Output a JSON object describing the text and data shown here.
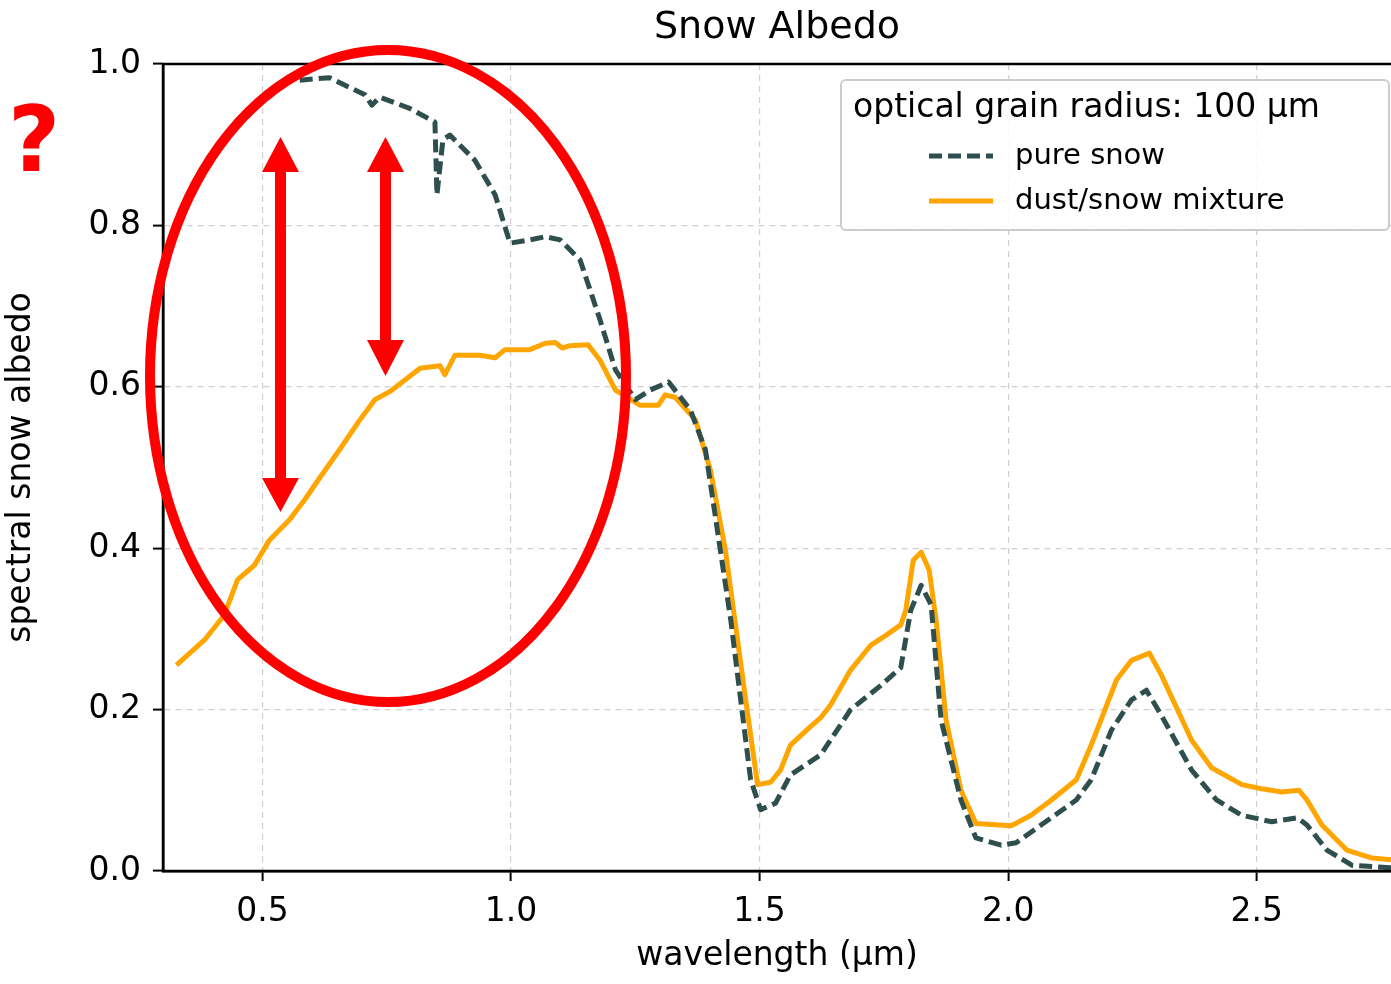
{
  "chart_data": {
    "type": "line",
    "title": "Snow Albedo",
    "xlabel": "wavelength (µm)",
    "ylabel": "spectral snow albedo",
    "legend_title": "optical grain radius: 100 µm",
    "legend": "top right",
    "grid": true,
    "marker": "none",
    "xlim": [
      0.3,
      2.77
    ],
    "xticks": [
      0.5,
      {
        "value": 1,
        "label": "1.0"
      },
      1.5,
      {
        "value": 2,
        "label": "2.0"
      },
      2.5
    ],
    "ylim": [
      0,
      1
    ],
    "yticks": [
      {
        "value": 0,
        "label": "0.0"
      },
      0.2,
      0.4,
      0.6,
      0.8,
      {
        "value": 1,
        "label": "1.0"
      }
    ],
    "annotations": [
      "?"
    ],
    "series": [
      {
        "name": "pure snow",
        "color": "#2f4f4f",
        "line_style": "dashed",
        "x": [
          0.575,
          0.635,
          0.665,
          0.706,
          0.72,
          0.736,
          0.796,
          0.847,
          0.851,
          0.863,
          0.877,
          0.927,
          0.968,
          0.998,
          1.038,
          1.069,
          1.099,
          1.139,
          1.179,
          1.21,
          1.25,
          1.28,
          1.317,
          1.361,
          1.391,
          1.442,
          1.482,
          1.502,
          1.532,
          1.562,
          1.623,
          1.683,
          1.744,
          1.784,
          1.804,
          1.825,
          1.845,
          1.865,
          1.905,
          1.935,
          1.986,
          2.016,
          2.066,
          2.137,
          2.167,
          2.208,
          2.248,
          2.278,
          2.308,
          2.369,
          2.419,
          2.47,
          2.53,
          2.581,
          2.601,
          2.641,
          2.692,
          2.77
        ],
        "values": [
          0.98,
          0.983,
          0.974,
          0.962,
          0.949,
          0.959,
          0.945,
          0.928,
          0.838,
          0.906,
          0.912,
          0.881,
          0.838,
          0.778,
          0.782,
          0.786,
          0.782,
          0.757,
          0.683,
          0.621,
          0.584,
          0.596,
          0.606,
          0.571,
          0.522,
          0.311,
          0.113,
          0.076,
          0.084,
          0.119,
          0.144,
          0.2,
          0.23,
          0.252,
          0.323,
          0.354,
          0.33,
          0.187,
          0.088,
          0.041,
          0.032,
          0.035,
          0.057,
          0.088,
          0.113,
          0.175,
          0.212,
          0.224,
          0.193,
          0.125,
          0.088,
          0.069,
          0.061,
          0.066,
          0.057,
          0.026,
          0.007,
          0.004
        ]
      },
      {
        "name": "dust/snow mixture",
        "color": "#ffa500",
        "line_style": "solid",
        "x": [
          0.327,
          0.383,
          0.423,
          0.45,
          0.484,
          0.514,
          0.554,
          0.585,
          0.615,
          0.655,
          0.696,
          0.726,
          0.756,
          0.786,
          0.817,
          0.857,
          0.867,
          0.887,
          0.938,
          0.968,
          0.988,
          1.038,
          1.069,
          1.089,
          1.103,
          1.119,
          1.155,
          1.179,
          1.21,
          1.26,
          1.296,
          1.31,
          1.33,
          1.371,
          1.401,
          1.431,
          1.472,
          1.496,
          1.522,
          1.542,
          1.562,
          1.599,
          1.623,
          1.643,
          1.683,
          1.724,
          1.754,
          1.784,
          1.794,
          1.809,
          1.825,
          1.841,
          1.855,
          1.875,
          1.905,
          1.935,
          2.006,
          2.046,
          2.087,
          2.137,
          2.167,
          2.218,
          2.248,
          2.284,
          2.308,
          2.369,
          2.409,
          2.47,
          2.51,
          2.55,
          2.585,
          2.601,
          2.631,
          2.681,
          2.732,
          2.77
        ],
        "values": [
          0.255,
          0.286,
          0.317,
          0.361,
          0.379,
          0.41,
          0.435,
          0.46,
          0.487,
          0.522,
          0.559,
          0.584,
          0.594,
          0.608,
          0.623,
          0.626,
          0.615,
          0.639,
          0.639,
          0.636,
          0.646,
          0.646,
          0.654,
          0.655,
          0.648,
          0.651,
          0.652,
          0.633,
          0.596,
          0.577,
          0.577,
          0.59,
          0.587,
          0.559,
          0.497,
          0.398,
          0.212,
          0.107,
          0.11,
          0.125,
          0.156,
          0.177,
          0.19,
          0.206,
          0.249,
          0.28,
          0.292,
          0.305,
          0.323,
          0.385,
          0.395,
          0.373,
          0.311,
          0.187,
          0.1,
          0.059,
          0.056,
          0.069,
          0.088,
          0.113,
          0.156,
          0.237,
          0.261,
          0.27,
          0.243,
          0.162,
          0.128,
          0.107,
          0.102,
          0.098,
          0.1,
          0.088,
          0.057,
          0.026,
          0.016,
          0.014
        ]
      }
    ]
  }
}
